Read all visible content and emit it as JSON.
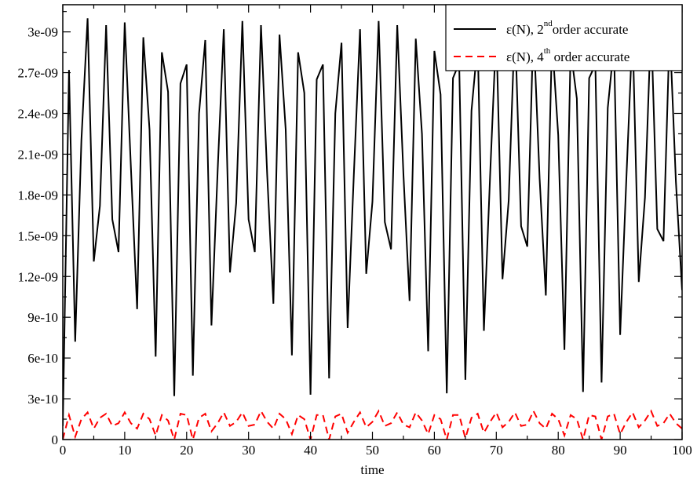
{
  "chart_data": {
    "type": "line",
    "title": "",
    "xlabel": "time",
    "ylabel": "",
    "xlim": [
      0,
      100
    ],
    "ylim": [
      0,
      3.2e-09
    ],
    "x_ticks": [
      0,
      10,
      20,
      30,
      40,
      50,
      60,
      70,
      80,
      90,
      100
    ],
    "x_tick_labels": [
      "0",
      "10",
      "20",
      "30",
      "40",
      "50",
      "60",
      "70",
      "80",
      "90",
      "100"
    ],
    "y_ticks": [
      0,
      3e-10,
      6e-10,
      9e-10,
      1.2e-09,
      1.5e-09,
      1.8e-09,
      2.1e-09,
      2.4e-09,
      2.7e-09,
      3e-09
    ],
    "y_tick_labels": [
      "0",
      "3e-10",
      "6e-10",
      "9e-10",
      "1.2e-09",
      "1.5e-09",
      "1.8e-09",
      "2.1e-09",
      "2.4e-09",
      "2.7e-09",
      "3e-09"
    ],
    "grid": false,
    "legend_position": "top-right",
    "x": [
      0,
      1,
      2,
      3,
      4,
      5,
      6,
      7,
      8,
      9,
      10,
      11,
      12,
      13,
      14,
      15,
      16,
      17,
      18,
      19,
      20,
      21,
      22,
      23,
      24,
      25,
      26,
      27,
      28,
      29,
      30,
      31,
      32,
      33,
      34,
      35,
      36,
      37,
      38,
      39,
      40,
      41,
      42,
      43,
      44,
      45,
      46,
      47,
      48,
      49,
      50,
      51,
      52,
      53,
      54,
      55,
      56,
      57,
      58,
      59,
      60,
      61,
      62,
      63,
      64,
      65,
      66,
      67,
      68,
      69,
      70,
      71,
      72,
      73,
      74,
      75,
      76,
      77,
      78,
      79,
      80,
      81,
      82,
      83,
      84,
      85,
      86,
      87,
      88,
      89,
      90,
      91,
      92,
      93,
      94,
      95,
      96,
      97,
      98,
      99,
      100
    ],
    "series": [
      {
        "name": "ε(N), 2",
        "name_sup": "nd",
        "name_rest": "order accurate",
        "color": "#000000",
        "dash": "solid",
        "values": [
          1e-10,
          2.72e-09,
          7.2e-10,
          2.2e-09,
          3.1e-09,
          1.31e-09,
          1.72e-09,
          3.05e-09,
          1.62e-09,
          1.38e-09,
          3.07e-09,
          2e-09,
          9.6e-10,
          2.96e-09,
          2.28e-09,
          6.1e-10,
          2.85e-09,
          2.56e-09,
          3.2e-10,
          2.62e-09,
          2.76e-09,
          4.7e-10,
          2.4e-09,
          2.94e-09,
          8.4e-10,
          1.98e-09,
          3.02e-09,
          1.23e-09,
          1.74e-09,
          3.08e-09,
          1.62e-09,
          1.38e-09,
          3.05e-09,
          1.95e-09,
          1e-09,
          2.98e-09,
          2.28e-09,
          6.2e-10,
          2.85e-09,
          2.55e-09,
          3.3e-10,
          2.65e-09,
          2.76e-09,
          4.5e-10,
          2.4e-09,
          2.92e-09,
          8.2e-10,
          1.95e-09,
          3.02e-09,
          1.22e-09,
          1.75e-09,
          3.08e-09,
          1.6e-09,
          1.4e-09,
          3.05e-09,
          1.95e-09,
          1.02e-09,
          2.95e-09,
          2.25e-09,
          6.5e-10,
          2.86e-09,
          2.54e-09,
          3.4e-10,
          2.66e-09,
          2.77e-09,
          4.4e-10,
          2.42e-09,
          2.92e-09,
          8e-10,
          1.94e-09,
          3.02e-09,
          1.18e-09,
          1.76e-09,
          3.08e-09,
          1.57e-09,
          1.42e-09,
          3.05e-09,
          1.92e-09,
          1.06e-09,
          2.95e-09,
          2.24e-09,
          6.6e-10,
          2.87e-09,
          2.51e-09,
          3.5e-10,
          2.66e-09,
          2.76e-09,
          4.2e-10,
          2.44e-09,
          2.9e-09,
          7.7e-10,
          1.92e-09,
          3.02e-09,
          1.16e-09,
          1.78e-09,
          3.08e-09,
          1.55e-09,
          1.46e-09,
          3.03e-09,
          1.9e-09,
          1.1e-09
        ]
      },
      {
        "name": "ε(N), 4",
        "name_sup": "th",
        "name_rest": " order accurate",
        "color": "#ff0000",
        "dash": "dashed",
        "values": [
          0,
          1.8e-10,
          2e-11,
          1.5e-10,
          2e-10,
          8e-11,
          1.6e-10,
          1.9e-10,
          1e-10,
          1.2e-10,
          2e-10,
          1.2e-10,
          8e-11,
          1.9e-10,
          1.5e-10,
          3e-11,
          1.8e-10,
          1.4e-10,
          0,
          1.9e-10,
          1.8e-10,
          0,
          1.6e-10,
          1.9e-10,
          6e-11,
          1.2e-10,
          2e-10,
          1e-10,
          1.3e-10,
          2e-10,
          1e-10,
          1.1e-10,
          2.1e-10,
          1.3e-10,
          8e-11,
          1.9e-10,
          1.5e-10,
          4e-11,
          1.8e-10,
          1.5e-10,
          0,
          1.8e-10,
          1.8e-10,
          0,
          1.7e-10,
          1.9e-10,
          5e-11,
          1.3e-10,
          2e-10,
          9e-11,
          1.3e-10,
          2.1e-10,
          1e-10,
          1.2e-10,
          2e-10,
          1.1e-10,
          9e-11,
          2e-10,
          1.4e-10,
          4e-11,
          1.8e-10,
          1.5e-10,
          0,
          1.8e-10,
          1.8e-10,
          1e-11,
          1.6e-10,
          1.9e-10,
          5e-11,
          1.3e-10,
          2e-10,
          9e-11,
          1.3e-10,
          2e-10,
          1e-10,
          1.1e-10,
          2.1e-10,
          1.2e-10,
          8e-11,
          1.9e-10,
          1.5e-10,
          3e-11,
          1.8e-10,
          1.5e-10,
          0,
          1.8e-10,
          1.7e-10,
          0,
          1.7e-10,
          1.9e-10,
          4e-11,
          1.3e-10,
          2e-10,
          9e-11,
          1.4e-10,
          2.1e-10,
          1e-10,
          1.2e-10,
          1.9e-10,
          1.2e-10,
          8e-11
        ]
      }
    ]
  }
}
